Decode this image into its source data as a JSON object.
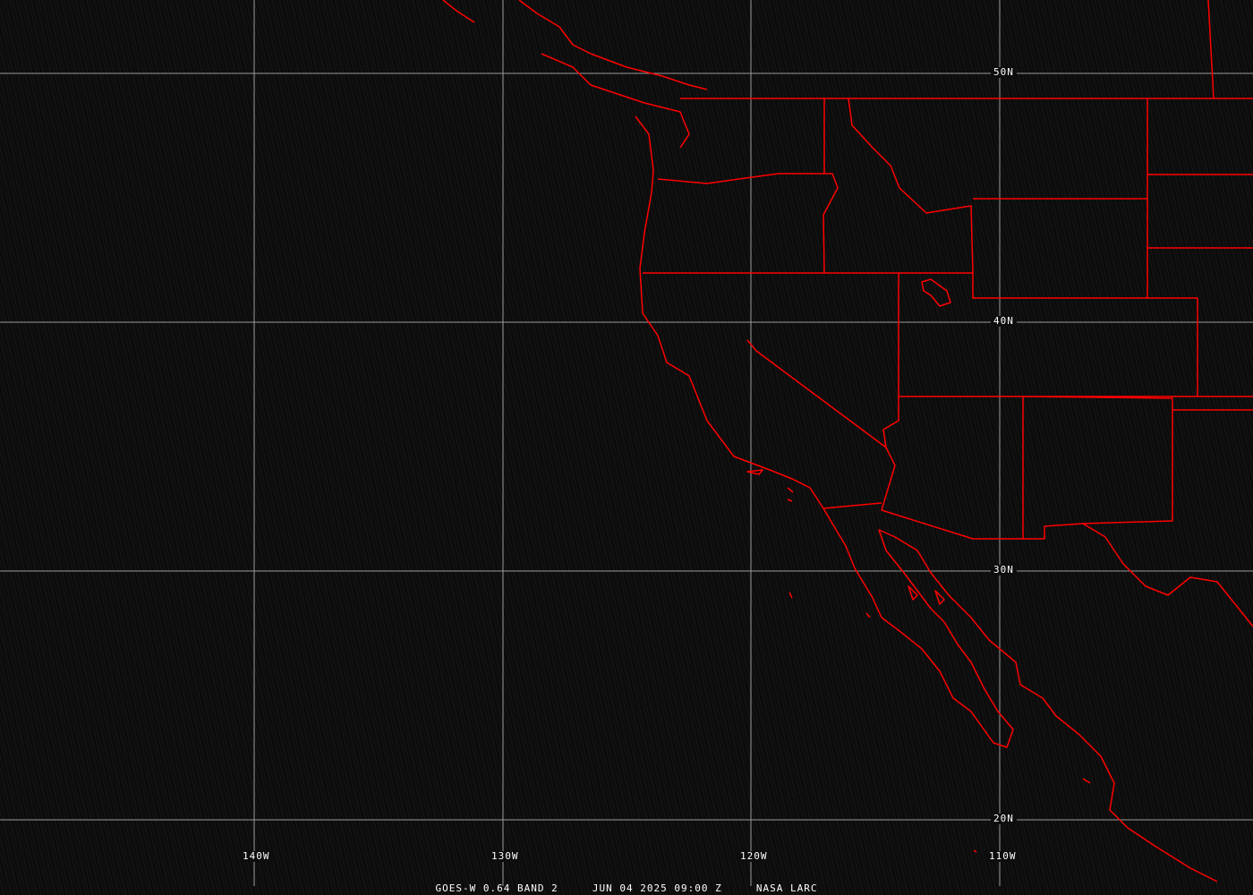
{
  "caption": {
    "satellite": "GOES-W 0.64 BAND 2",
    "datetime": "JUN 04 2025 09:00 Z",
    "source": "NASA LARC"
  },
  "grid": {
    "latitudes": [
      "50N",
      "40N",
      "30N",
      "20N"
    ],
    "longitudes": [
      "140W",
      "130W",
      "120W",
      "110W"
    ]
  },
  "colors": {
    "boundaries": "#ff0000",
    "grid": "#9a9a9a",
    "background": "#0d0d0d",
    "text": "#ffffff"
  }
}
